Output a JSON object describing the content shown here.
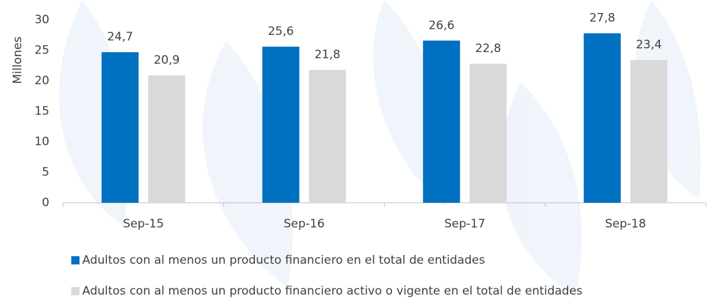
{
  "chart_data": {
    "type": "bar",
    "y_label": "Millones",
    "categories": [
      "Sep-15",
      "Sep-16",
      "Sep-17",
      "Sep-18"
    ],
    "series": [
      {
        "name": "Adultos con al menos un producto financiero en el total de entidades",
        "color": "#0070c0",
        "values": [
          24.7,
          25.6,
          26.6,
          27.8
        ],
        "value_labels": [
          "24,7",
          "25,6",
          "26,6",
          "27,8"
        ]
      },
      {
        "name": "Adultos con al menos un producto financiero activo o vigente en el total de entidades",
        "color": "#d9d9d9",
        "values": [
          20.9,
          21.8,
          22.8,
          23.4
        ],
        "value_labels": [
          "20,9",
          "21,8",
          "22,8",
          "23,4"
        ]
      }
    ],
    "ylim": [
      0,
      30
    ],
    "yticks": [
      0,
      5,
      10,
      15,
      20,
      25,
      30
    ],
    "grid": false,
    "legend": "bottom"
  }
}
